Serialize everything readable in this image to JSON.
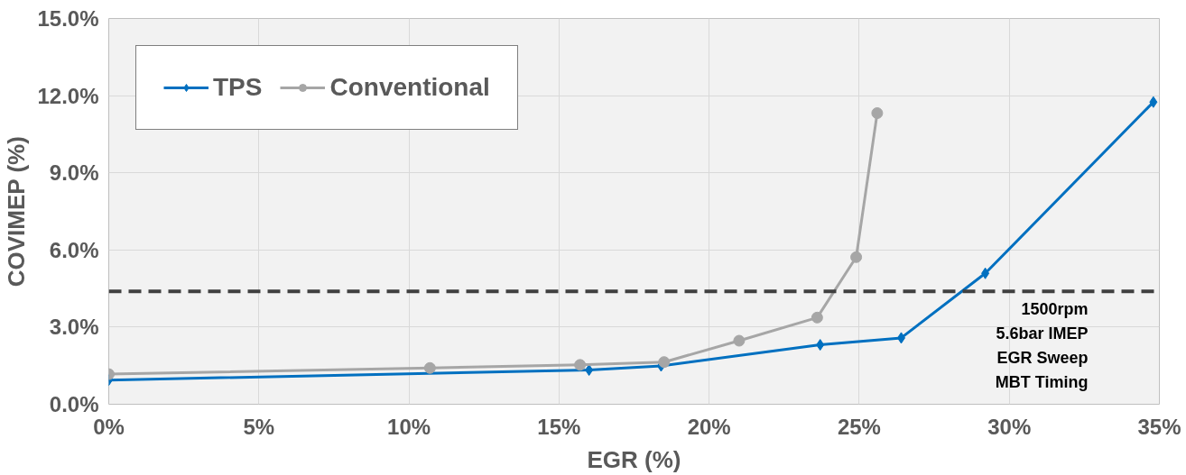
{
  "chart_data": {
    "type": "line",
    "xlabel": "EGR (%)",
    "ylabel": "COVIMEP (%)",
    "xlim": [
      0,
      35
    ],
    "ylim": [
      0,
      15
    ],
    "xticks": [
      {
        "value": 0,
        "label": "0%"
      },
      {
        "value": 5,
        "label": "5%"
      },
      {
        "value": 10,
        "label": "10%"
      },
      {
        "value": 15,
        "label": "15%"
      },
      {
        "value": 20,
        "label": "20%"
      },
      {
        "value": 25,
        "label": "25%"
      },
      {
        "value": 30,
        "label": "30%"
      },
      {
        "value": 35,
        "label": "35%"
      }
    ],
    "yticks": [
      {
        "value": 0,
        "label": "0.0%"
      },
      {
        "value": 3,
        "label": "3.0%"
      },
      {
        "value": 6,
        "label": "6.0%"
      },
      {
        "value": 9,
        "label": "9.0%"
      },
      {
        "value": 12,
        "label": "12.0%"
      },
      {
        "value": 15,
        "label": "15.0%"
      }
    ],
    "series": [
      {
        "name": "TPS",
        "color": "#0070c0",
        "marker": "diamond",
        "x": [
          0,
          16.0,
          18.4,
          23.7,
          26.4,
          29.2,
          34.8
        ],
        "values": [
          0.94,
          1.33,
          1.49,
          2.31,
          2.58,
          5.09,
          11.75
        ]
      },
      {
        "name": "Conventional",
        "color": "#a6a6a6",
        "marker": "circle",
        "x": [
          0,
          10.7,
          15.7,
          18.5,
          21.0,
          23.6,
          24.9,
          25.6
        ],
        "values": [
          1.17,
          1.41,
          1.53,
          1.64,
          2.47,
          3.37,
          5.72,
          11.32
        ]
      }
    ],
    "ref_lines": [
      {
        "axis": "y",
        "value": 4.39,
        "color": "#404040",
        "line_style": "dashed"
      }
    ],
    "annotations": [
      "1500rpm",
      "5.6bar IMEP",
      "EGR Sweep",
      "MBT Timing"
    ],
    "grid": true,
    "legend": "top left"
  }
}
